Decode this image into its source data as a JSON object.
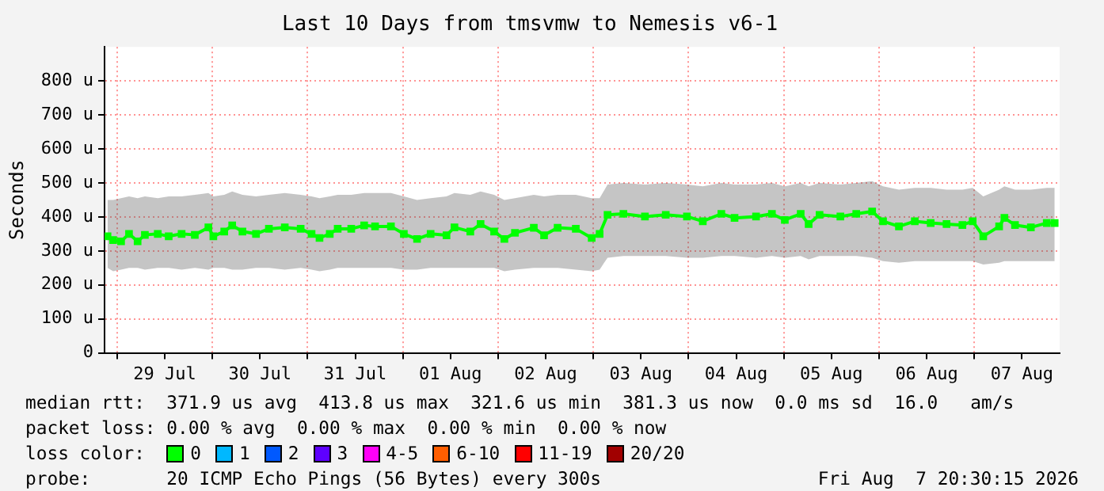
{
  "chart_data": {
    "type": "line",
    "title": "Last 10 Days from tmsvmw to Nemesis v6-1",
    "ylabel": "Seconds",
    "x": [
      "2026-07-28T21:35",
      "2026-07-28T23:00",
      "2026-07-29T01:00",
      "2026-07-29T03:00",
      "2026-07-29T05:10",
      "2026-07-29T07:00",
      "2026-07-29T10:15",
      "2026-07-29T13:00",
      "2026-07-29T16:15",
      "2026-07-29T19:35",
      "2026-07-29T23:00",
      "2026-07-30T00:15",
      "2026-07-30T03:00",
      "2026-07-30T05:00",
      "2026-07-30T07:35",
      "2026-07-30T11:00",
      "2026-07-30T14:15",
      "2026-07-30T18:15",
      "2026-07-30T22:15",
      "2026-07-31T01:00",
      "2026-07-31T03:00",
      "2026-07-31T05:35",
      "2026-07-31T07:35",
      "2026-07-31T11:00",
      "2026-07-31T14:15",
      "2026-07-31T17:00",
      "2026-07-31T21:00",
      "2026-08-01T00:15",
      "2026-08-01T03:35",
      "2026-08-01T07:00",
      "2026-08-01T11:00",
      "2026-08-01T13:00",
      "2026-08-01T17:00",
      "2026-08-01T19:35",
      "2026-08-01T23:00",
      "2026-08-02T01:35",
      "2026-08-02T04:15",
      "2026-08-02T09:00",
      "2026-08-02T11:35",
      "2026-08-02T15:00",
      "2026-08-02T19:35",
      "2026-08-02T23:35",
      "2026-08-03T01:35",
      "2026-08-03T03:35",
      "2026-08-03T07:35",
      "2026-08-03T13:00",
      "2026-08-03T18:15",
      "2026-08-03T23:35",
      "2026-08-04T03:35",
      "2026-08-04T08:15",
      "2026-08-04T11:35",
      "2026-08-04T17:00",
      "2026-08-04T21:00",
      "2026-08-05T00:15",
      "2026-08-05T04:15",
      "2026-08-05T06:15",
      "2026-08-05T09:00",
      "2026-08-05T14:15",
      "2026-08-05T18:15",
      "2026-08-05T22:15",
      "2026-08-06T01:00",
      "2026-08-06T05:00",
      "2026-08-06T09:00",
      "2026-08-06T13:00",
      "2026-08-06T17:00",
      "2026-08-06T21:00",
      "2026-08-06T23:35",
      "2026-08-07T02:15",
      "2026-08-07T06:15",
      "2026-08-07T07:35",
      "2026-08-07T10:15",
      "2026-08-07T14:15",
      "2026-08-07T18:15",
      "2026-08-07T20:15"
    ],
    "series": [
      {
        "name": "0",
        "color": "#00ff00",
        "values": [
          343,
          332,
          328,
          350,
          328,
          347,
          350,
          343,
          350,
          347,
          369,
          343,
          357,
          375,
          357,
          350,
          365,
          369,
          365,
          350,
          338,
          350,
          365,
          365,
          375,
          372,
          372,
          350,
          335,
          350,
          346,
          369,
          357,
          379,
          357,
          335,
          353,
          368,
          346,
          368,
          365,
          338,
          350,
          406,
          409,
          401,
          406,
          401,
          387,
          409,
          397,
          401,
          409,
          391,
          409,
          379,
          406,
          401,
          409,
          416,
          387,
          372,
          387,
          382,
          379,
          376,
          387,
          343,
          372,
          397,
          376,
          369,
          382,
          382
        ],
        "lower": [
          250,
          240,
          245,
          250,
          250,
          245,
          250,
          250,
          245,
          250,
          245,
          250,
          250,
          245,
          245,
          250,
          250,
          245,
          250,
          245,
          240,
          245,
          250,
          250,
          250,
          250,
          250,
          245,
          245,
          250,
          250,
          250,
          250,
          250,
          250,
          240,
          245,
          250,
          250,
          250,
          245,
          240,
          245,
          280,
          285,
          285,
          285,
          280,
          280,
          285,
          285,
          280,
          285,
          280,
          285,
          275,
          285,
          285,
          285,
          280,
          270,
          265,
          270,
          270,
          270,
          270,
          270,
          260,
          265,
          270,
          270,
          270,
          270,
          270
        ],
        "upper": [
          450,
          450,
          455,
          460,
          455,
          460,
          455,
          460,
          460,
          465,
          470,
          460,
          465,
          475,
          465,
          460,
          465,
          470,
          465,
          460,
          455,
          460,
          465,
          465,
          470,
          470,
          470,
          460,
          450,
          455,
          460,
          470,
          465,
          475,
          465,
          450,
          455,
          465,
          460,
          465,
          465,
          455,
          455,
          495,
          500,
          495,
          500,
          495,
          490,
          500,
          495,
          495,
          500,
          490,
          500,
          490,
          500,
          495,
          500,
          505,
          490,
          480,
          485,
          485,
          480,
          480,
          485,
          460,
          480,
          490,
          480,
          480,
          485,
          485
        ]
      },
      {
        "name": "1",
        "color": "#00b8ff",
        "values": [
          null,
          null,
          null,
          null,
          null,
          null,
          null,
          null,
          null,
          null,
          null,
          null,
          null,
          null,
          null,
          null,
          null,
          null,
          null,
          null,
          null,
          null,
          null,
          null,
          null,
          null,
          null,
          null,
          null,
          null,
          null,
          null,
          null,
          null,
          null,
          null,
          null,
          null,
          null,
          null,
          null,
          null,
          null,
          null,
          null,
          null,
          null,
          null,
          null,
          null,
          null,
          null,
          null,
          null,
          null,
          null,
          null,
          null,
          null,
          null,
          null,
          null,
          null,
          null,
          null,
          null,
          null,
          null,
          null,
          null,
          null,
          null,
          null,
          null
        ]
      },
      {
        "name": "2",
        "color": "#0059ff",
        "values": [
          null,
          null,
          null,
          null,
          null,
          null,
          null,
          null,
          null,
          null,
          null,
          null,
          null,
          null,
          null,
          null,
          null,
          null,
          null,
          null,
          null,
          null,
          null,
          null,
          null,
          null,
          null,
          null,
          null,
          null,
          null,
          null,
          null,
          null,
          null,
          null,
          null,
          null,
          null,
          null,
          null,
          null,
          null,
          null,
          null,
          null,
          null,
          null,
          null,
          null,
          null,
          null,
          null,
          null,
          null,
          null,
          null,
          null,
          null,
          null,
          null,
          null,
          null,
          null,
          null,
          null,
          null,
          null,
          null,
          null,
          null,
          null,
          null,
          null
        ]
      },
      {
        "name": "3",
        "color": "#5e00ff",
        "values": [
          null,
          null,
          null,
          null,
          null,
          null,
          null,
          null,
          null,
          null,
          null,
          null,
          null,
          null,
          null,
          null,
          null,
          null,
          null,
          null,
          null,
          null,
          null,
          null,
          null,
          null,
          null,
          null,
          null,
          null,
          null,
          null,
          null,
          null,
          null,
          null,
          null,
          null,
          null,
          null,
          null,
          null,
          null,
          null,
          null,
          null,
          null,
          null,
          null,
          null,
          null,
          null,
          null,
          null,
          null,
          null,
          null,
          null,
          null,
          null,
          null,
          null,
          null,
          null,
          null,
          null,
          null,
          null,
          null,
          null,
          null,
          null,
          null,
          null
        ]
      },
      {
        "name": "4-5",
        "color": "#ff00f8",
        "values": [
          null,
          null,
          null,
          null,
          null,
          null,
          null,
          null,
          null,
          null,
          null,
          null,
          null,
          null,
          null,
          null,
          null,
          null,
          null,
          null,
          null,
          null,
          null,
          null,
          null,
          null,
          null,
          null,
          null,
          null,
          null,
          null,
          null,
          null,
          null,
          null,
          null,
          null,
          null,
          null,
          null,
          null,
          null,
          null,
          null,
          null,
          null,
          null,
          null,
          null,
          null,
          null,
          null,
          null,
          null,
          null,
          null,
          null,
          null,
          null,
          null,
          null,
          null,
          null,
          null,
          null,
          null,
          null,
          null,
          null,
          null,
          null,
          null,
          null
        ]
      },
      {
        "name": "6-10",
        "color": "#ff5e00",
        "values": [
          null,
          null,
          null,
          null,
          null,
          null,
          null,
          null,
          null,
          null,
          null,
          null,
          null,
          null,
          null,
          null,
          null,
          null,
          null,
          null,
          null,
          null,
          null,
          null,
          null,
          null,
          null,
          null,
          null,
          null,
          null,
          null,
          null,
          null,
          null,
          null,
          null,
          null,
          null,
          null,
          null,
          null,
          null,
          null,
          null,
          null,
          null,
          null,
          null,
          null,
          null,
          null,
          null,
          null,
          null,
          null,
          null,
          null,
          null,
          null,
          null,
          null,
          null,
          null,
          null,
          null,
          null,
          null,
          null,
          null,
          null,
          null,
          null,
          null
        ]
      },
      {
        "name": "11-19",
        "color": "#ff0000",
        "values": [
          null,
          null,
          null,
          null,
          null,
          null,
          null,
          null,
          null,
          null,
          null,
          null,
          null,
          null,
          null,
          null,
          null,
          null,
          null,
          null,
          null,
          null,
          null,
          null,
          null,
          null,
          null,
          null,
          null,
          null,
          null,
          null,
          null,
          null,
          null,
          null,
          null,
          null,
          null,
          null,
          null,
          null,
          null,
          null,
          null,
          null,
          null,
          null,
          null,
          null,
          null,
          null,
          null,
          null,
          null,
          null,
          null,
          null,
          null,
          null,
          null,
          null,
          null,
          null,
          null,
          null,
          null,
          null,
          null,
          null,
          null,
          null,
          null,
          null
        ]
      },
      {
        "name": "20/20",
        "color": "#a10000",
        "values": [
          null,
          null,
          null,
          null,
          null,
          null,
          null,
          null,
          null,
          null,
          null,
          null,
          null,
          null,
          null,
          null,
          null,
          null,
          null,
          null,
          null,
          null,
          null,
          null,
          null,
          null,
          null,
          null,
          null,
          null,
          null,
          null,
          null,
          null,
          null,
          null,
          null,
          null,
          null,
          null,
          null,
          null,
          null,
          null,
          null,
          null,
          null,
          null,
          null,
          null,
          null,
          null,
          null,
          null,
          null,
          null,
          null,
          null,
          null,
          null,
          null,
          null,
          null,
          null,
          null,
          null,
          null,
          null,
          null,
          null,
          null,
          null,
          null,
          null
        ]
      }
    ],
    "legend": "bottom",
    "legend_title": "loss color:",
    "marker": "square",
    "grid": true,
    "xlim": [
      "2026-07-28T20:50",
      "2026-08-07T21:30"
    ],
    "xticks": [
      {
        "value": "2026-07-29T00:00",
        "label": null
      },
      {
        "value": "2026-07-29T12:00",
        "label": "29 Jul"
      },
      {
        "value": "2026-07-30T00:00",
        "label": null
      },
      {
        "value": "2026-07-30T12:00",
        "label": "30 Jul"
      },
      {
        "value": "2026-07-31T00:00",
        "label": null
      },
      {
        "value": "2026-07-31T12:00",
        "label": "31 Jul"
      },
      {
        "value": "2026-08-01T00:00",
        "label": null
      },
      {
        "value": "2026-08-01T12:00",
        "label": "01 Aug"
      },
      {
        "value": "2026-08-02T00:00",
        "label": null
      },
      {
        "value": "2026-08-02T12:00",
        "label": "02 Aug"
      },
      {
        "value": "2026-08-03T00:00",
        "label": null
      },
      {
        "value": "2026-08-03T12:00",
        "label": "03 Aug"
      },
      {
        "value": "2026-08-04T00:00",
        "label": null
      },
      {
        "value": "2026-08-04T12:00",
        "label": "04 Aug"
      },
      {
        "value": "2026-08-05T00:00",
        "label": null
      },
      {
        "value": "2026-08-05T12:00",
        "label": "05 Aug"
      },
      {
        "value": "2026-08-06T00:00",
        "label": null
      },
      {
        "value": "2026-08-06T12:00",
        "label": "06 Aug"
      },
      {
        "value": "2026-08-07T00:00",
        "label": null
      },
      {
        "value": "2026-08-07T12:00",
        "label": "07 Aug"
      }
    ],
    "ylim": [
      0,
      900
    ],
    "yticks": [
      0,
      {
        "value": 100,
        "label": "100 u"
      },
      {
        "value": 200,
        "label": "200 u"
      },
      {
        "value": 300,
        "label": "300 u"
      },
      {
        "value": 400,
        "label": "400 u"
      },
      {
        "value": 500,
        "label": "500 u"
      },
      {
        "value": 600,
        "label": "600 u"
      },
      {
        "value": 700,
        "label": "700 u"
      },
      {
        "value": 800,
        "label": "800 u"
      }
    ],
    "annotations": [
      "median rtt:  371.9 us avg  413.8 us max  321.6 us min  381.3 us now  0.0 ms sd  16.0   am/s",
      "packet loss: 0.00 % avg  0.00 % max  0.00 % min  0.00 % now",
      "probe:       20 ICMP Echo Pings (56 Bytes) every 300s",
      "Fri Aug  7 20:30:15 2026"
    ]
  }
}
